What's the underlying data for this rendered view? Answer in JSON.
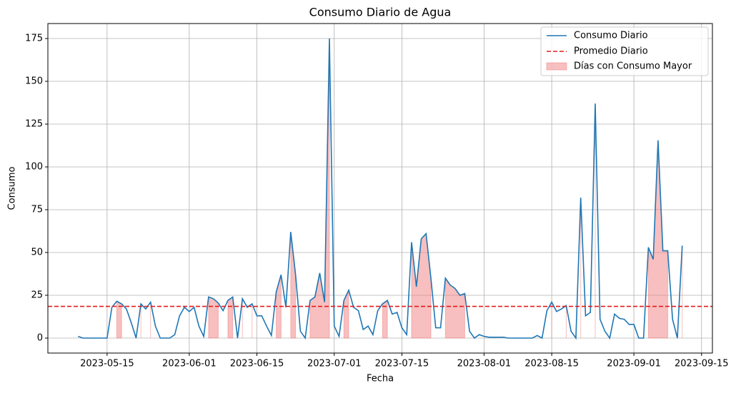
{
  "chart_data": {
    "type": "line",
    "title": "Consumo Diario de Agua",
    "x_label": "Fecha",
    "y_label": "Consumo",
    "x": [
      "2023-05-09",
      "2023-05-10",
      "2023-05-11",
      "2023-05-12",
      "2023-05-13",
      "2023-05-14",
      "2023-05-15",
      "2023-05-16",
      "2023-05-17",
      "2023-05-18",
      "2023-05-19",
      "2023-05-20",
      "2023-05-21",
      "2023-05-22",
      "2023-05-23",
      "2023-05-24",
      "2023-05-25",
      "2023-05-26",
      "2023-05-27",
      "2023-05-28",
      "2023-05-29",
      "2023-05-30",
      "2023-05-31",
      "2023-06-01",
      "2023-06-02",
      "2023-06-03",
      "2023-06-04",
      "2023-06-05",
      "2023-06-06",
      "2023-06-07",
      "2023-06-08",
      "2023-06-09",
      "2023-06-10",
      "2023-06-11",
      "2023-06-12",
      "2023-06-13",
      "2023-06-14",
      "2023-06-15",
      "2023-06-16",
      "2023-06-17",
      "2023-06-18",
      "2023-06-19",
      "2023-06-20",
      "2023-06-21",
      "2023-06-22",
      "2023-06-23",
      "2023-06-24",
      "2023-06-25",
      "2023-06-26",
      "2023-06-27",
      "2023-06-28",
      "2023-06-29",
      "2023-06-30",
      "2023-07-01",
      "2023-07-02",
      "2023-07-03",
      "2023-07-04",
      "2023-07-05",
      "2023-07-06",
      "2023-07-07",
      "2023-07-08",
      "2023-07-09",
      "2023-07-10",
      "2023-07-11",
      "2023-07-12",
      "2023-07-13",
      "2023-07-14",
      "2023-07-15",
      "2023-07-16",
      "2023-07-17",
      "2023-07-18",
      "2023-07-19",
      "2023-07-20",
      "2023-07-21",
      "2023-07-22",
      "2023-07-23",
      "2023-07-24",
      "2023-07-25",
      "2023-07-26",
      "2023-07-27",
      "2023-07-28",
      "2023-07-29",
      "2023-07-30",
      "2023-07-31",
      "2023-08-01",
      "2023-08-02",
      "2023-08-03",
      "2023-08-04",
      "2023-08-05",
      "2023-08-06",
      "2023-08-07",
      "2023-08-08",
      "2023-08-09",
      "2023-08-10",
      "2023-08-11",
      "2023-08-12",
      "2023-08-13",
      "2023-08-14",
      "2023-08-15",
      "2023-08-16",
      "2023-08-17",
      "2023-08-18",
      "2023-08-19",
      "2023-08-20",
      "2023-08-21",
      "2023-08-22",
      "2023-08-23",
      "2023-08-24",
      "2023-08-25",
      "2023-08-26",
      "2023-08-27",
      "2023-08-28",
      "2023-08-29",
      "2023-08-30",
      "2023-08-31",
      "2023-09-01",
      "2023-09-02",
      "2023-09-03",
      "2023-09-04",
      "2023-09-05",
      "2023-09-06",
      "2023-09-07",
      "2023-09-08",
      "2023-09-09",
      "2023-09-10",
      "2023-09-11"
    ],
    "series": [
      {
        "name": "Consumo Diario",
        "color": "#1f77b4",
        "values": [
          1,
          0,
          0,
          0,
          0,
          0,
          0,
          18,
          21.5,
          20,
          17,
          9,
          0,
          20,
          17,
          21,
          7,
          0,
          0,
          0,
          2,
          13,
          18,
          15.5,
          18,
          7,
          1,
          24,
          23,
          20.5,
          16,
          22,
          24,
          0,
          23,
          18,
          20,
          13,
          13,
          7,
          1.5,
          27,
          37,
          18,
          62,
          37,
          4,
          0,
          22,
          24,
          38,
          21,
          175,
          7,
          1,
          22,
          28,
          18,
          16,
          5,
          7,
          2,
          16,
          20,
          22,
          14,
          15,
          6,
          2,
          56,
          30,
          58,
          61,
          35,
          6,
          6,
          35,
          31,
          29,
          25,
          26,
          4,
          0,
          2,
          1,
          0.5,
          0.5,
          0.5,
          0.5,
          0,
          0,
          0,
          0,
          0,
          0,
          1.5,
          0,
          16,
          21,
          15.5,
          17,
          19,
          4,
          0,
          82,
          13,
          15,
          137,
          11,
          4,
          0,
          14,
          11.5,
          11,
          8,
          8,
          0,
          0,
          53,
          46,
          115.5,
          51,
          51,
          11,
          0,
          54
        ]
      }
    ],
    "mean_line": {
      "name": "Promedio Diario",
      "color": "#e41a1c",
      "value": 18.5
    },
    "fill": {
      "name": "Días con Consumo Mayor",
      "color": "#f08080"
    },
    "xlim": [
      "2023-05-02T18:00",
      "2023-09-17T06:00"
    ],
    "xticks": [
      "2023-05-15",
      "2023-06-01",
      "2023-06-15",
      "2023-07-01",
      "2023-07-15",
      "2023-08-01",
      "2023-08-15",
      "2023-09-01",
      "2023-09-15"
    ],
    "ylim": [
      -8.75,
      183.75
    ],
    "yticks": [
      0,
      25,
      50,
      75,
      100,
      125,
      150,
      175
    ],
    "grid": true,
    "legend": "upper right"
  }
}
